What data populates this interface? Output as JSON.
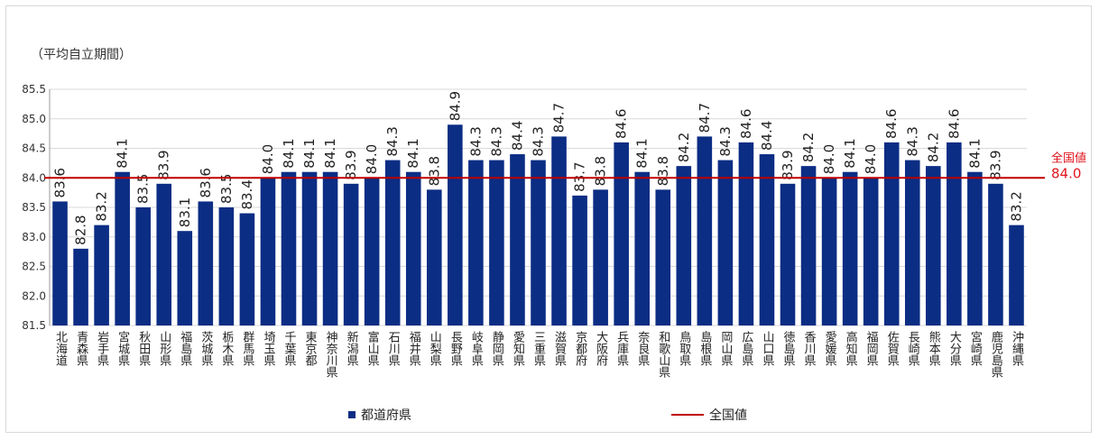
{
  "chart_data": {
    "type": "bar",
    "ylabel": "（平均自立期間）",
    "ylim": [
      81.5,
      85.5
    ],
    "yticks": [
      "81.5",
      "82.0",
      "82.5",
      "83.0",
      "83.5",
      "84.0",
      "84.5",
      "85.0",
      "85.5"
    ],
    "grid": true,
    "categories": [
      "北海道",
      "青森県",
      "岩手県",
      "宮城県",
      "秋田県",
      "山形県",
      "福島県",
      "茨城県",
      "栃木県",
      "群馬県",
      "埼玉県",
      "千葉県",
      "東京都",
      "神奈川県",
      "新潟県",
      "富山県",
      "石川県",
      "福井県",
      "山梨県",
      "長野県",
      "岐阜県",
      "静岡県",
      "愛知県",
      "三重県",
      "滋賀県",
      "京都府",
      "大阪府",
      "兵庫県",
      "奈良県",
      "和歌山県",
      "鳥取県",
      "島根県",
      "岡山県",
      "広島県",
      "山口県",
      "徳島県",
      "香川県",
      "愛媛県",
      "高知県",
      "福岡県",
      "佐賀県",
      "長崎県",
      "熊本県",
      "大分県",
      "宮崎県",
      "鹿児島県",
      "沖縄県"
    ],
    "series": [
      {
        "name": "都道府県",
        "color": "#0b2d84",
        "values": [
          83.6,
          82.8,
          83.2,
          84.1,
          83.5,
          83.9,
          83.1,
          83.6,
          83.5,
          83.4,
          84.0,
          84.1,
          84.1,
          84.1,
          83.9,
          84.0,
          84.3,
          84.1,
          83.8,
          84.9,
          84.3,
          84.3,
          84.4,
          84.3,
          84.7,
          83.7,
          83.8,
          84.6,
          84.1,
          83.8,
          84.2,
          84.7,
          84.3,
          84.6,
          84.4,
          83.9,
          84.2,
          84.0,
          84.1,
          84.0,
          84.6,
          84.3,
          84.2,
          84.6,
          84.1,
          83.9,
          83.2
        ],
        "labels": [
          "83.6",
          "82.8",
          "83.2",
          "84.1",
          "83.5",
          "83.9",
          "83.1",
          "83.6",
          "83.5",
          "83.4",
          "84.0",
          "84.1",
          "84.1",
          "84.1",
          "83.9",
          "84.0",
          "84.3",
          "84.1",
          "83.8",
          "84.9",
          "84.3",
          "84.3",
          "84.4",
          "84.3",
          "84.7",
          "83.7",
          "83.8",
          "84.6",
          "84.1",
          "83.8",
          "84.2",
          "84.7",
          "84.3",
          "84.6",
          "84.4",
          "83.9",
          "84.2",
          "84.0",
          "84.1",
          "84.0",
          "84.6",
          "84.3",
          "84.2",
          "84.6",
          "84.1",
          "83.9",
          "83.2"
        ]
      }
    ],
    "reference_line": {
      "name": "全国値",
      "value": 84.0,
      "label": "全国値",
      "value_label": "84.0",
      "color": "#c00000"
    },
    "legend": {
      "bar_label": "都道府県",
      "line_label": "全国値",
      "placement": "bottom"
    }
  }
}
